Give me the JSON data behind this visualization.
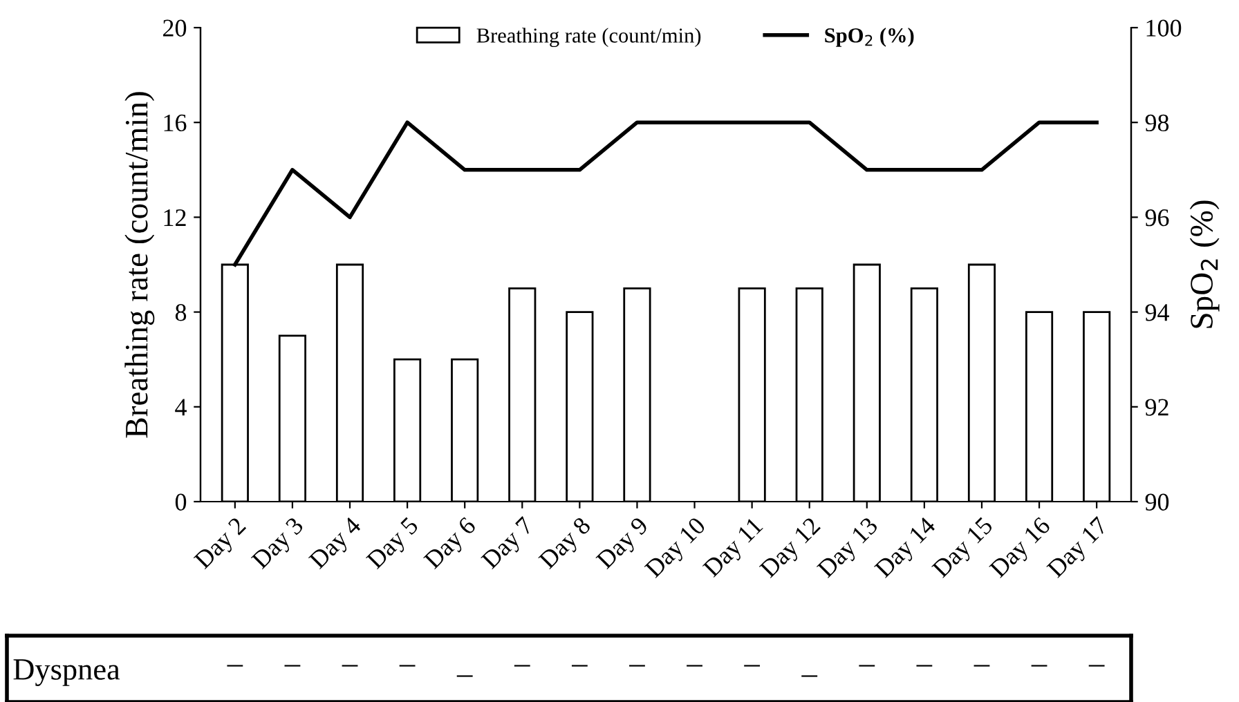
{
  "chart_data": [
    {
      "type": "bar",
      "ylabel": "Breathing rate (count/min)",
      "y2label": "SpO$_{2}$ (%)",
      "categories": [
        "Day 2",
        "Day 3",
        "Day 4",
        "Day 5",
        "Day 6",
        "Day 7",
        "Day 8",
        "Day 9",
        "Day 10",
        "Day 11",
        "Day 12",
        "Day 13",
        "Day 14",
        "Day 15",
        "Day 16",
        "Day 17"
      ],
      "series": [
        {
          "name": "Breathing rate (count/min)",
          "type": "bar",
          "color": "#ffffff",
          "values": [
            10,
            7,
            10,
            6,
            6,
            9,
            8,
            9,
            null,
            9,
            9,
            10,
            9,
            10,
            8,
            8
          ]
        },
        {
          "name": "SpO$_{2}$ (%)",
          "type": "line",
          "axis": "y2",
          "color": "#000000",
          "values": [
            95,
            97,
            96,
            98,
            97,
            97,
            97,
            98,
            98,
            98,
            98,
            97,
            97,
            97,
            98,
            98
          ]
        }
      ],
      "ylim": [
        0,
        20
      ],
      "yticks": [
        0,
        4,
        8,
        12,
        16,
        20
      ],
      "y2lim": [
        90,
        100
      ],
      "y2ticks": [
        90,
        92,
        94,
        96,
        98,
        100
      ],
      "grid": false,
      "legend": "top",
      "marker": "none",
      "line_style": "solid"
    },
    {
      "type": "other",
      "annotations": [
        "Dyspnea",
        "–",
        "–",
        "–",
        "–",
        "_",
        "–",
        "–",
        "–",
        "–",
        "–",
        "_",
        "–",
        "–",
        "–",
        "–",
        "–"
      ]
    }
  ]
}
